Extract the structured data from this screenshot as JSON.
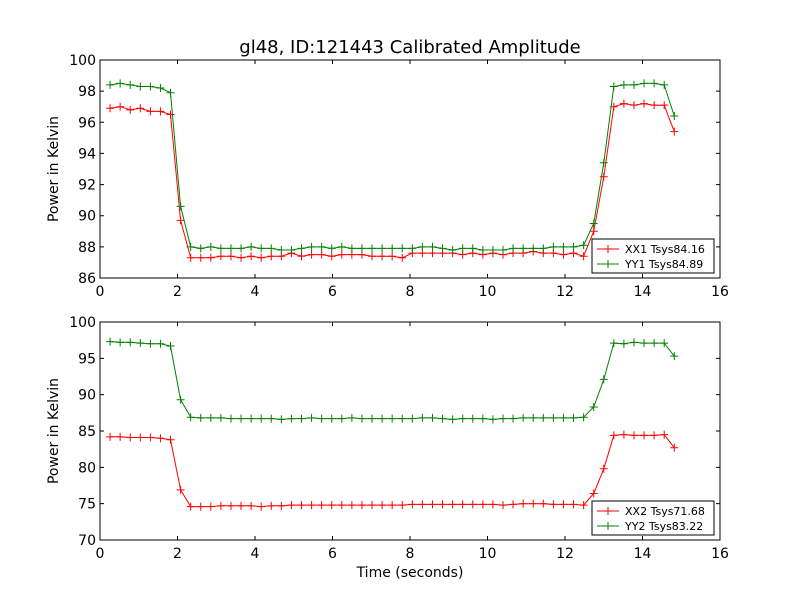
{
  "figure": {
    "title": "gl48, ID:121443 Calibrated Amplitude",
    "background": "#ffffff"
  },
  "chart_data": [
    {
      "type": "line",
      "title": "gl48, ID:121443 Calibrated Amplitude",
      "xlabel": "",
      "ylabel": "Power in Kelvin",
      "xlim": [
        0,
        16
      ],
      "ylim": [
        86,
        100
      ],
      "xticks": [
        0,
        2,
        4,
        6,
        8,
        10,
        12,
        14,
        16
      ],
      "yticks": [
        86,
        88,
        90,
        92,
        94,
        96,
        98,
        100
      ],
      "grid": false,
      "marker": "plus",
      "legend_position": "lower-right",
      "x": [
        0.26,
        0.52,
        0.78,
        1.04,
        1.3,
        1.56,
        1.82,
        2.08,
        2.34,
        2.6,
        2.86,
        3.12,
        3.38,
        3.64,
        3.9,
        4.16,
        4.42,
        4.68,
        4.94,
        5.2,
        5.46,
        5.72,
        5.98,
        6.24,
        6.5,
        6.76,
        7.02,
        7.28,
        7.54,
        7.8,
        8.06,
        8.32,
        8.58,
        8.84,
        9.1,
        9.36,
        9.62,
        9.88,
        10.14,
        10.4,
        10.66,
        10.92,
        11.18,
        11.44,
        11.7,
        11.96,
        12.22,
        12.48,
        12.74,
        13.0,
        13.26,
        13.52,
        13.78,
        14.04,
        14.3,
        14.56,
        14.82
      ],
      "series": [
        {
          "name": "XX1 Tsys84.16",
          "color": "#ff0000",
          "values": [
            96.9,
            97.0,
            96.8,
            96.9,
            96.7,
            96.7,
            96.5,
            89.7,
            87.3,
            87.3,
            87.3,
            87.4,
            87.4,
            87.3,
            87.4,
            87.3,
            87.4,
            87.4,
            87.6,
            87.4,
            87.5,
            87.5,
            87.4,
            87.5,
            87.5,
            87.5,
            87.4,
            87.4,
            87.4,
            87.3,
            87.6,
            87.6,
            87.6,
            87.6,
            87.6,
            87.5,
            87.6,
            87.5,
            87.6,
            87.5,
            87.6,
            87.6,
            87.7,
            87.6,
            87.6,
            87.5,
            87.6,
            87.4,
            89.0,
            92.5,
            97.0,
            97.2,
            97.1,
            97.2,
            97.1,
            97.1,
            95.4
          ]
        },
        {
          "name": "YY1 Tsys84.89",
          "color": "#008000",
          "values": [
            98.4,
            98.5,
            98.4,
            98.3,
            98.3,
            98.2,
            97.9,
            90.6,
            88.0,
            87.9,
            88.0,
            87.9,
            87.9,
            87.9,
            88.0,
            87.9,
            87.9,
            87.8,
            87.8,
            87.9,
            88.0,
            88.0,
            87.9,
            88.0,
            87.9,
            87.9,
            87.9,
            87.9,
            87.9,
            87.9,
            87.9,
            88.0,
            88.0,
            87.9,
            87.8,
            87.9,
            87.9,
            87.8,
            87.8,
            87.8,
            87.9,
            87.9,
            87.9,
            87.9,
            88.0,
            88.0,
            88.0,
            88.1,
            89.5,
            93.4,
            98.3,
            98.4,
            98.4,
            98.5,
            98.5,
            98.4,
            96.4
          ]
        }
      ]
    },
    {
      "type": "line",
      "title": "",
      "xlabel": "Time (seconds)",
      "ylabel": "Power in Kelvin",
      "xlim": [
        0,
        16
      ],
      "ylim": [
        70,
        100
      ],
      "xticks": [
        0,
        2,
        4,
        6,
        8,
        10,
        12,
        14,
        16
      ],
      "yticks": [
        70,
        75,
        80,
        85,
        90,
        95,
        100
      ],
      "grid": false,
      "marker": "plus",
      "legend_position": "lower-right",
      "x": [
        0.26,
        0.52,
        0.78,
        1.04,
        1.3,
        1.56,
        1.82,
        2.08,
        2.34,
        2.6,
        2.86,
        3.12,
        3.38,
        3.64,
        3.9,
        4.16,
        4.42,
        4.68,
        4.94,
        5.2,
        5.46,
        5.72,
        5.98,
        6.24,
        6.5,
        6.76,
        7.02,
        7.28,
        7.54,
        7.8,
        8.06,
        8.32,
        8.58,
        8.84,
        9.1,
        9.36,
        9.62,
        9.88,
        10.14,
        10.4,
        10.66,
        10.92,
        11.18,
        11.44,
        11.7,
        11.96,
        12.22,
        12.48,
        12.74,
        13.0,
        13.26,
        13.52,
        13.78,
        14.04,
        14.3,
        14.56,
        14.82
      ],
      "series": [
        {
          "name": "XX2 Tsys71.68",
          "color": "#ff0000",
          "values": [
            84.2,
            84.2,
            84.1,
            84.1,
            84.1,
            84.0,
            83.8,
            76.9,
            74.6,
            74.6,
            74.6,
            74.7,
            74.7,
            74.7,
            74.7,
            74.6,
            74.7,
            74.7,
            74.8,
            74.8,
            74.8,
            74.8,
            74.8,
            74.8,
            74.8,
            74.8,
            74.8,
            74.8,
            74.8,
            74.8,
            74.9,
            74.9,
            74.9,
            74.9,
            74.9,
            74.9,
            74.9,
            74.9,
            74.9,
            74.8,
            74.9,
            75.0,
            75.0,
            75.0,
            74.9,
            74.9,
            74.9,
            74.8,
            76.4,
            79.8,
            84.4,
            84.5,
            84.4,
            84.4,
            84.4,
            84.5,
            82.7
          ]
        },
        {
          "name": "YY2 Tsys83.22",
          "color": "#008000",
          "values": [
            97.3,
            97.2,
            97.2,
            97.1,
            97.0,
            97.0,
            96.7,
            89.3,
            86.9,
            86.8,
            86.8,
            86.8,
            86.7,
            86.7,
            86.7,
            86.7,
            86.7,
            86.6,
            86.7,
            86.7,
            86.8,
            86.7,
            86.7,
            86.7,
            86.8,
            86.7,
            86.7,
            86.7,
            86.7,
            86.7,
            86.7,
            86.8,
            86.8,
            86.7,
            86.6,
            86.7,
            86.7,
            86.7,
            86.6,
            86.7,
            86.7,
            86.8,
            86.8,
            86.8,
            86.8,
            86.8,
            86.8,
            86.9,
            88.3,
            92.1,
            97.1,
            97.0,
            97.2,
            97.1,
            97.1,
            97.1,
            95.3
          ]
        }
      ]
    }
  ]
}
